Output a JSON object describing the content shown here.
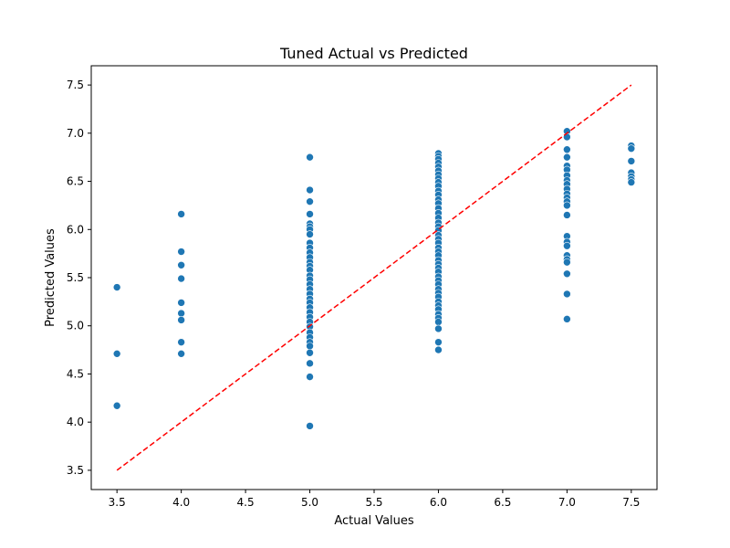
{
  "chart_data": {
    "type": "scatter",
    "title": "Tuned Actual vs Predicted",
    "xlabel": "Actual Values",
    "ylabel": "Predicted Values",
    "xlim": [
      3.3,
      7.7
    ],
    "ylim": [
      3.3,
      7.7
    ],
    "xticks": [
      "3.5",
      "4.0",
      "4.5",
      "5.0",
      "5.5",
      "6.0",
      "6.5",
      "7.0",
      "7.5"
    ],
    "yticks": [
      "3.5",
      "4.0",
      "4.5",
      "5.0",
      "5.5",
      "6.0",
      "6.5",
      "7.0",
      "7.5"
    ],
    "grid": false,
    "colors": {
      "points": "#1f77b4",
      "reference_line": "#ff0000"
    },
    "reference_line": {
      "from": [
        3.5,
        3.5
      ],
      "to": [
        7.5,
        7.5
      ],
      "style": "dashed"
    },
    "points": [
      [
        3.5,
        5.4
      ],
      [
        3.5,
        4.71
      ],
      [
        3.5,
        4.17
      ],
      [
        4.0,
        6.16
      ],
      [
        4.0,
        5.77
      ],
      [
        4.0,
        5.63
      ],
      [
        4.0,
        5.49
      ],
      [
        4.0,
        5.24
      ],
      [
        4.0,
        5.13
      ],
      [
        4.0,
        5.06
      ],
      [
        4.0,
        4.83
      ],
      [
        4.0,
        4.71
      ],
      [
        5.0,
        6.75
      ],
      [
        5.0,
        6.41
      ],
      [
        5.0,
        6.29
      ],
      [
        5.0,
        6.16
      ],
      [
        5.0,
        6.06
      ],
      [
        5.0,
        6.03
      ],
      [
        5.0,
        6.0
      ],
      [
        5.0,
        5.95
      ],
      [
        5.0,
        5.86
      ],
      [
        5.0,
        5.81
      ],
      [
        5.0,
        5.76
      ],
      [
        5.0,
        5.71
      ],
      [
        5.0,
        5.66
      ],
      [
        5.0,
        5.62
      ],
      [
        5.0,
        5.58
      ],
      [
        5.0,
        5.52
      ],
      [
        5.0,
        5.48
      ],
      [
        5.0,
        5.43
      ],
      [
        5.0,
        5.38
      ],
      [
        5.0,
        5.33
      ],
      [
        5.0,
        5.28
      ],
      [
        5.0,
        5.24
      ],
      [
        5.0,
        5.19
      ],
      [
        5.0,
        5.14
      ],
      [
        5.0,
        5.09
      ],
      [
        5.0,
        5.04
      ],
      [
        5.0,
        4.99
      ],
      [
        5.0,
        4.93
      ],
      [
        5.0,
        4.88
      ],
      [
        5.0,
        4.83
      ],
      [
        5.0,
        4.79
      ],
      [
        5.0,
        4.72
      ],
      [
        5.0,
        4.61
      ],
      [
        5.0,
        4.47
      ],
      [
        5.0,
        3.96
      ],
      [
        6.0,
        6.79
      ],
      [
        6.0,
        6.76
      ],
      [
        6.0,
        6.73
      ],
      [
        6.0,
        6.69
      ],
      [
        6.0,
        6.65
      ],
      [
        6.0,
        6.61
      ],
      [
        6.0,
        6.57
      ],
      [
        6.0,
        6.53
      ],
      [
        6.0,
        6.49
      ],
      [
        6.0,
        6.45
      ],
      [
        6.0,
        6.4
      ],
      [
        6.0,
        6.36
      ],
      [
        6.0,
        6.31
      ],
      [
        6.0,
        6.27
      ],
      [
        6.0,
        6.22
      ],
      [
        6.0,
        6.17
      ],
      [
        6.0,
        6.12
      ],
      [
        6.0,
        6.07
      ],
      [
        6.0,
        6.03
      ],
      [
        6.0,
        5.99
      ],
      [
        6.0,
        5.94
      ],
      [
        6.0,
        5.9
      ],
      [
        6.0,
        5.86
      ],
      [
        6.0,
        5.81
      ],
      [
        6.0,
        5.77
      ],
      [
        6.0,
        5.73
      ],
      [
        6.0,
        5.68
      ],
      [
        6.0,
        5.64
      ],
      [
        6.0,
        5.6
      ],
      [
        6.0,
        5.56
      ],
      [
        6.0,
        5.51
      ],
      [
        6.0,
        5.47
      ],
      [
        6.0,
        5.43
      ],
      [
        6.0,
        5.38
      ],
      [
        6.0,
        5.34
      ],
      [
        6.0,
        5.3
      ],
      [
        6.0,
        5.25
      ],
      [
        6.0,
        5.21
      ],
      [
        6.0,
        5.17
      ],
      [
        6.0,
        5.12
      ],
      [
        6.0,
        5.08
      ],
      [
        6.0,
        5.04
      ],
      [
        6.0,
        4.97
      ],
      [
        6.0,
        4.83
      ],
      [
        6.0,
        4.75
      ],
      [
        7.0,
        7.02
      ],
      [
        7.0,
        6.96
      ],
      [
        7.0,
        6.83
      ],
      [
        7.0,
        6.75
      ],
      [
        7.0,
        6.66
      ],
      [
        7.0,
        6.62
      ],
      [
        7.0,
        6.56
      ],
      [
        7.0,
        6.51
      ],
      [
        7.0,
        6.47
      ],
      [
        7.0,
        6.42
      ],
      [
        7.0,
        6.37
      ],
      [
        7.0,
        6.33
      ],
      [
        7.0,
        6.29
      ],
      [
        7.0,
        6.25
      ],
      [
        7.0,
        6.15
      ],
      [
        7.0,
        5.93
      ],
      [
        7.0,
        5.87
      ],
      [
        7.0,
        5.83
      ],
      [
        7.0,
        5.73
      ],
      [
        7.0,
        5.69
      ],
      [
        7.0,
        5.66
      ],
      [
        7.0,
        5.54
      ],
      [
        7.0,
        5.33
      ],
      [
        7.0,
        5.07
      ],
      [
        7.5,
        6.87
      ],
      [
        7.5,
        6.84
      ],
      [
        7.5,
        6.71
      ],
      [
        7.5,
        6.59
      ],
      [
        7.5,
        6.55
      ],
      [
        7.5,
        6.52
      ],
      [
        7.5,
        6.49
      ]
    ]
  }
}
